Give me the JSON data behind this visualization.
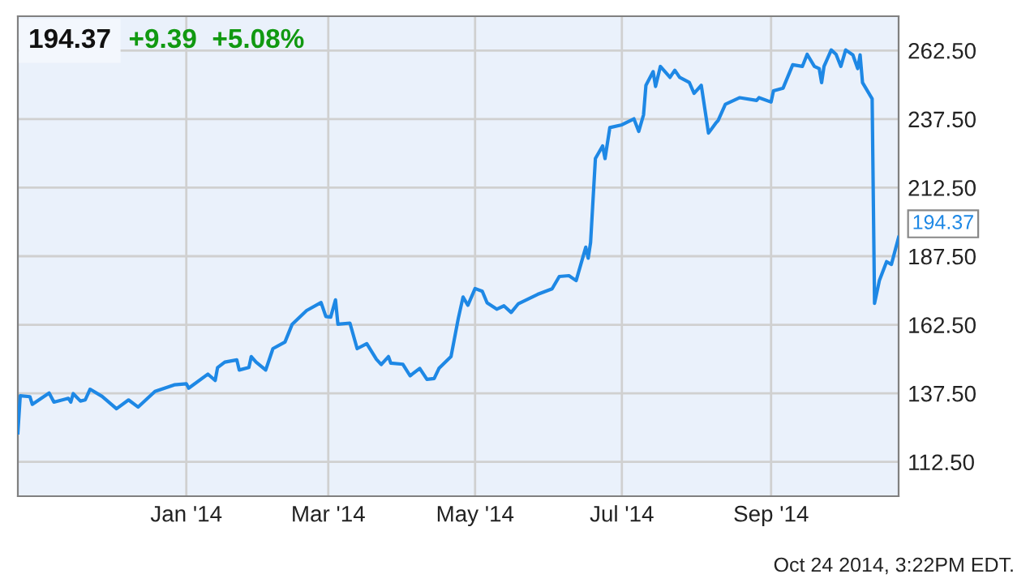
{
  "chart_data": {
    "type": "line",
    "title": "194.37",
    "subtitle": "+9.39  +5.08%",
    "x": [
      "2013-10-23",
      "2013-10-24",
      "2013-10-28",
      "2013-10-29",
      "2013-11-05",
      "2013-11-07",
      "2013-11-13",
      "2013-11-14",
      "2013-11-15",
      "2013-11-18",
      "2013-11-20",
      "2013-11-22",
      "2013-11-27",
      "2013-12-03",
      "2013-12-08",
      "2013-12-12",
      "2013-12-19",
      "2013-12-27",
      "2014-01-01",
      "2014-01-02",
      "2014-01-10",
      "2014-01-13",
      "2014-01-14",
      "2014-01-17",
      "2014-01-22",
      "2014-01-23",
      "2014-01-27",
      "2014-01-28",
      "2014-01-30",
      "2014-02-03",
      "2014-02-06",
      "2014-02-11",
      "2014-02-14",
      "2014-02-20",
      "2014-02-26",
      "2014-02-28",
      "2014-03-02",
      "2014-03-04",
      "2014-03-05",
      "2014-03-10",
      "2014-03-13",
      "2014-03-17",
      "2014-03-21",
      "2014-03-23",
      "2014-03-26",
      "2014-03-27",
      "2014-04-01",
      "2014-04-04",
      "2014-04-08",
      "2014-04-11",
      "2014-04-14",
      "2014-04-16",
      "2014-04-21",
      "2014-04-24",
      "2014-04-26",
      "2014-04-28",
      "2014-05-01",
      "2014-05-04",
      "2014-05-06",
      "2014-05-10",
      "2014-05-13",
      "2014-05-16",
      "2014-05-19",
      "2014-05-27",
      "2014-06-02",
      "2014-06-05",
      "2014-06-09",
      "2014-06-12",
      "2014-06-16",
      "2014-06-17",
      "2014-06-18",
      "2014-06-20",
      "2014-06-23",
      "2014-06-24",
      "2014-06-26",
      "2014-07-01",
      "2014-07-06",
      "2014-07-08",
      "2014-07-10",
      "2014-07-11",
      "2014-07-14",
      "2014-07-15",
      "2014-07-17",
      "2014-07-21",
      "2014-07-23",
      "2014-07-25",
      "2014-07-29",
      "2014-07-31",
      "2014-08-03",
      "2014-08-06",
      "2014-08-09",
      "2014-08-10",
      "2014-08-13",
      "2014-08-19",
      "2014-08-26",
      "2014-08-27",
      "2014-09-01",
      "2014-09-02",
      "2014-09-06",
      "2014-09-10",
      "2014-09-14",
      "2014-09-16",
      "2014-09-19",
      "2014-09-21",
      "2014-09-22",
      "2014-09-23",
      "2014-09-26",
      "2014-09-28",
      "2014-09-30",
      "2014-10-02",
      "2014-10-05",
      "2014-10-07",
      "2014-10-08",
      "2014-10-09",
      "2014-10-13",
      "2014-10-14",
      "2014-10-16",
      "2014-10-19",
      "2014-10-21",
      "2014-10-24"
    ],
    "series": [
      {
        "color": "#1e88e5",
        "values": [
          123.1,
          136.6,
          136.3,
          133.5,
          137.6,
          134.3,
          135.7,
          134.3,
          137.4,
          134.7,
          135.1,
          139,
          136.4,
          131.9,
          135.1,
          132.5,
          138.2,
          140.6,
          141,
          139.4,
          144.5,
          142.2,
          146.9,
          148.9,
          149.7,
          146,
          146.9,
          150.9,
          148.9,
          146,
          153.8,
          156.2,
          162.7,
          167.7,
          170.6,
          165.5,
          165.3,
          171.6,
          162.7,
          163.1,
          153.8,
          155.6,
          149.9,
          148,
          150.9,
          148.5,
          148.1,
          143.9,
          146.6,
          142.6,
          142.9,
          146.6,
          150.9,
          164.7,
          172.6,
          169.6,
          175.7,
          174.7,
          170.5,
          168.2,
          169.4,
          167,
          170.2,
          173.6,
          175.6,
          180.1,
          180.4,
          178.6,
          190.8,
          186.8,
          192.5,
          223.1,
          227.7,
          223.1,
          234.4,
          235.4,
          237.6,
          233,
          239,
          249.8,
          254.8,
          249.4,
          256.7,
          252.7,
          255.3,
          252.7,
          250.9,
          246.9,
          249.8,
          232.4,
          236,
          237,
          242.9,
          245.3,
          244.3,
          245.3,
          243.7,
          247.8,
          248.8,
          257.3,
          256.7,
          261.1,
          256.7,
          255.9,
          250.8,
          256.7,
          262.7,
          261.1,
          256.7,
          262.7,
          260.9,
          255.9,
          260.9,
          250.8,
          244.9,
          170.3,
          178.6,
          185.5,
          184.5,
          194.37
        ]
      }
    ],
    "xlim": [
      "2013-10-23",
      "2014-10-24"
    ],
    "xticks": [
      {
        "value": "2014-01-01",
        "label": "Jan '14"
      },
      {
        "value": "2014-03-01",
        "label": "Mar '14"
      },
      {
        "value": "2014-05-01",
        "label": "May '14"
      },
      {
        "value": "2014-07-01",
        "label": "Jul '14"
      },
      {
        "value": "2014-09-01",
        "label": "Sep '14"
      }
    ],
    "ylim": [
      100,
      275
    ],
    "yticks": [
      {
        "value": 112.5,
        "label": "112.50"
      },
      {
        "value": 137.5,
        "label": "137.50"
      },
      {
        "value": 162.5,
        "label": "162.50"
      },
      {
        "value": 187.5,
        "label": "187.50"
      },
      {
        "value": 212.5,
        "label": "212.50"
      },
      {
        "value": 237.5,
        "label": "237.50"
      },
      {
        "value": 262.5,
        "label": "262.50"
      }
    ],
    "grid": true,
    "legend": false,
    "annotations": [
      {
        "text": "194.37",
        "x": "2014-10-24",
        "y": 194.37
      },
      "Oct 24 2014, 3:22PM EDT."
    ]
  }
}
